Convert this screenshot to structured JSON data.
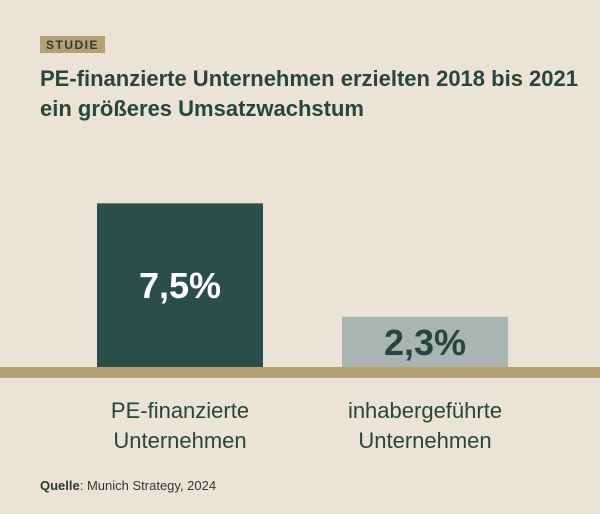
{
  "tag": "STUDIE",
  "title": "PE-finanzierte Unternehmen erzielten 2018 bis 2021 ein größeres Umsatzwachstum",
  "source": {
    "label": "Quelle",
    "text": ": Munich Strategy, 2024"
  },
  "colors": {
    "background": "#ebe3d6",
    "accent": "#b59f73",
    "bar_primary": "#2a4f48",
    "bar_secondary": "#aab4b1",
    "text_dark": "#28453f"
  },
  "chart_data": {
    "type": "bar",
    "categories": [
      [
        "PE-finanzierte",
        "Unternehmen"
      ],
      [
        "inhabergeführte",
        "Unternehmen"
      ]
    ],
    "values": [
      7.5,
      2.3
    ],
    "value_labels": [
      "7,5%",
      "2,3%"
    ],
    "title": "PE-finanzierte Unternehmen erzielten 2018 bis 2021 ein größeres Umsatzwachstum",
    "xlabel": "",
    "ylabel": "",
    "ylim": [
      0,
      9.9
    ],
    "grid": false,
    "legend": "none"
  }
}
